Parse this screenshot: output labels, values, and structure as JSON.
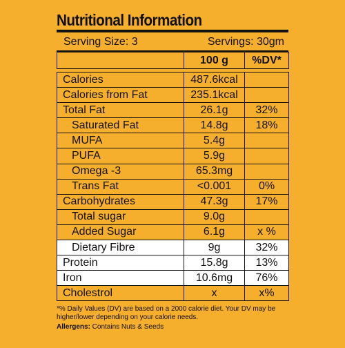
{
  "title": "Nutritional Information",
  "serving": {
    "size": "Serving Size: 3",
    "servings": "Servings: 30gm"
  },
  "header": {
    "per": "100 g",
    "dv": "%DV*"
  },
  "rows": [
    {
      "name": "Calories",
      "value": "487.6kcal",
      "dv": ""
    },
    {
      "name": "Calories from Fat",
      "value": "235.1kcal",
      "dv": ""
    },
    {
      "name": "Total Fat",
      "value": "26.1g",
      "dv": "32%"
    },
    {
      "name": "Saturated Fat",
      "value": "14.8g",
      "dv": "18%"
    },
    {
      "name": "MUFA",
      "value": "5.4g",
      "dv": ""
    },
    {
      "name": "PUFA",
      "value": "5.9g",
      "dv": ""
    },
    {
      "name": "Omega -3",
      "value": "65.3mg",
      "dv": ""
    },
    {
      "name": "Trans Fat",
      "value": "<0.001",
      "dv": "0%"
    },
    {
      "name": "Carbohydrates",
      "value": "47.3g",
      "dv": "17%"
    },
    {
      "name": "Total sugar",
      "value": "9.0g",
      "dv": ""
    },
    {
      "name": "Added Sugar",
      "value": "6.1g",
      "dv": "x %"
    },
    {
      "name": "Dietary Fibre",
      "value": "9g",
      "dv": "32%"
    },
    {
      "name": "Protein",
      "value": "15.8g",
      "dv": "13%"
    },
    {
      "name": "Iron",
      "value": "10.6mg",
      "dv": "76%"
    },
    {
      "name": "Cholestrol",
      "value": "x",
      "dv": "x%"
    }
  ],
  "footnote": "*% Daily Values (DV) are based on a 2000 calorie diet. Your DV may be higher/lower depending on your calorie needs.",
  "allergens": {
    "label": "Allergens:",
    "text": " Contains Nuts & Seeds"
  },
  "colors": {
    "background": "#F6AE2D",
    "ink": "#111111",
    "highlight": "#FFFFFF"
  }
}
